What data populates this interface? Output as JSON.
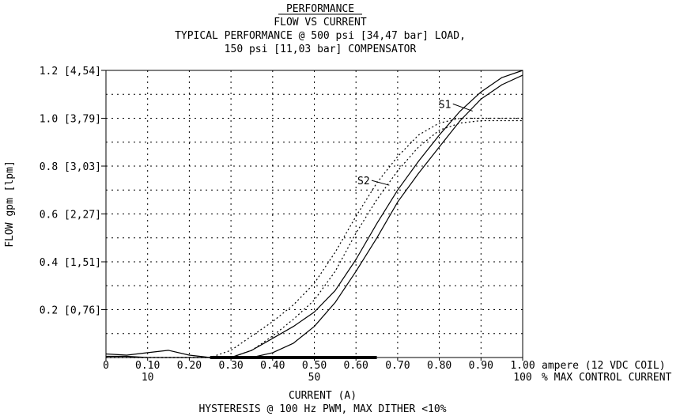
{
  "chart_data": {
    "type": "line",
    "title": "PERFORMANCE",
    "subtitle_lines": [
      "FLOW VS CURRENT",
      "TYPICAL PERFORMANCE @ 500 psi [34,47 bar] LOAD,",
      "150 psi [11,03 bar] COMPENSATOR"
    ],
    "xlabel": "CURRENT (A)",
    "footnote": "HYSTERESIS @ 100 Hz PWM, MAX DITHER <10%",
    "ylabel": "FLOW gpm [lpm]",
    "xlim": [
      0,
      1.0
    ],
    "ylim": [
      0,
      1.2
    ],
    "grid": true,
    "x_ticks": [
      {
        "value": 0,
        "label": "0"
      },
      {
        "value": 0.1,
        "label": "0.10"
      },
      {
        "value": 0.2,
        "label": "0.20"
      },
      {
        "value": 0.3,
        "label": "0.30"
      },
      {
        "value": 0.4,
        "label": "0.40"
      },
      {
        "value": 0.5,
        "label": "0.50"
      },
      {
        "value": 0.6,
        "label": "0.60"
      },
      {
        "value": 0.7,
        "label": "0.70"
      },
      {
        "value": 0.8,
        "label": "0.80"
      },
      {
        "value": 0.9,
        "label": "0.90"
      },
      {
        "value": 1.0,
        "label": "1.00"
      }
    ],
    "x_unit_label": "ampere (12 VDC COIL)",
    "x_percent_ticks": [
      {
        "value": 0.1,
        "label": "10"
      },
      {
        "value": 0.5,
        "label": "50"
      },
      {
        "value": 1.0,
        "label": "100"
      }
    ],
    "x_percent_label": "% MAX CONTROL CURRENT",
    "y_ticks": [
      {
        "value": 0.2,
        "label": "0.2 [0,76]"
      },
      {
        "value": 0.4,
        "label": "0.4 [1,51]"
      },
      {
        "value": 0.6,
        "label": "0.6 [2,27]"
      },
      {
        "value": 0.8,
        "label": "0.8 [3,03]"
      },
      {
        "value": 1.0,
        "label": "1.0 [3,79]"
      },
      {
        "value": 1.2,
        "label": "1.2 [4,54]"
      }
    ],
    "dead_band": [
      0.25,
      0.65
    ],
    "series": [
      {
        "name": "S1",
        "line_style": "solid",
        "curves": [
          {
            "x": [
              0.0,
              0.05,
              0.1,
              0.15,
              0.2,
              0.25,
              0.3,
              0.35,
              0.4,
              0.45,
              0.5,
              0.55,
              0.6,
              0.65,
              0.7,
              0.75,
              0.8,
              0.85,
              0.9,
              0.95,
              1.0
            ],
            "y": [
              0.015,
              0.01,
              0.02,
              0.03,
              0.01,
              0.0,
              0.0,
              0.03,
              0.08,
              0.13,
              0.19,
              0.28,
              0.41,
              0.56,
              0.7,
              0.82,
              0.93,
              1.03,
              1.11,
              1.17,
              1.2
            ]
          },
          {
            "x": [
              0.0,
              0.05,
              0.1,
              0.15,
              0.2,
              0.25,
              0.3,
              0.35,
              0.4,
              0.45,
              0.5,
              0.55,
              0.6,
              0.65,
              0.7,
              0.75,
              0.8,
              0.85,
              0.9,
              0.95,
              1.0
            ],
            "y": [
              0.005,
              0.005,
              0.0,
              0.0,
              0.0,
              0.0,
              0.0,
              0.0,
              0.02,
              0.06,
              0.13,
              0.23,
              0.36,
              0.5,
              0.65,
              0.77,
              0.88,
              0.99,
              1.08,
              1.14,
              1.18
            ]
          }
        ]
      },
      {
        "name": "S2",
        "line_style": "dotted",
        "curves": [
          {
            "x": [
              0.0,
              0.1,
              0.2,
              0.25,
              0.3,
              0.35,
              0.4,
              0.45,
              0.5,
              0.55,
              0.6,
              0.65,
              0.7,
              0.75,
              0.8,
              0.85,
              0.9,
              0.95,
              1.0
            ],
            "y": [
              0.0,
              0.0,
              0.0,
              0.0,
              0.03,
              0.09,
              0.15,
              0.22,
              0.31,
              0.44,
              0.59,
              0.73,
              0.84,
              0.93,
              0.98,
              1.0,
              1.0,
              1.0,
              1.0
            ]
          },
          {
            "x": [
              0.0,
              0.1,
              0.2,
              0.25,
              0.3,
              0.35,
              0.4,
              0.45,
              0.5,
              0.55,
              0.6,
              0.65,
              0.7,
              0.75,
              0.8,
              0.85,
              0.9,
              0.95,
              1.0
            ],
            "y": [
              0.0,
              0.0,
              0.0,
              0.0,
              0.0,
              0.03,
              0.09,
              0.16,
              0.24,
              0.36,
              0.52,
              0.66,
              0.78,
              0.88,
              0.95,
              0.98,
              0.99,
              0.99,
              0.99
            ]
          }
        ]
      }
    ],
    "annotations": [
      {
        "text": "S1",
        "x": 0.825,
        "y": 1.06,
        "tx": 0.88,
        "ty": 1.03
      },
      {
        "text": "S2",
        "x": 0.63,
        "y": 0.74,
        "tx": 0.68,
        "ty": 0.72
      }
    ]
  }
}
